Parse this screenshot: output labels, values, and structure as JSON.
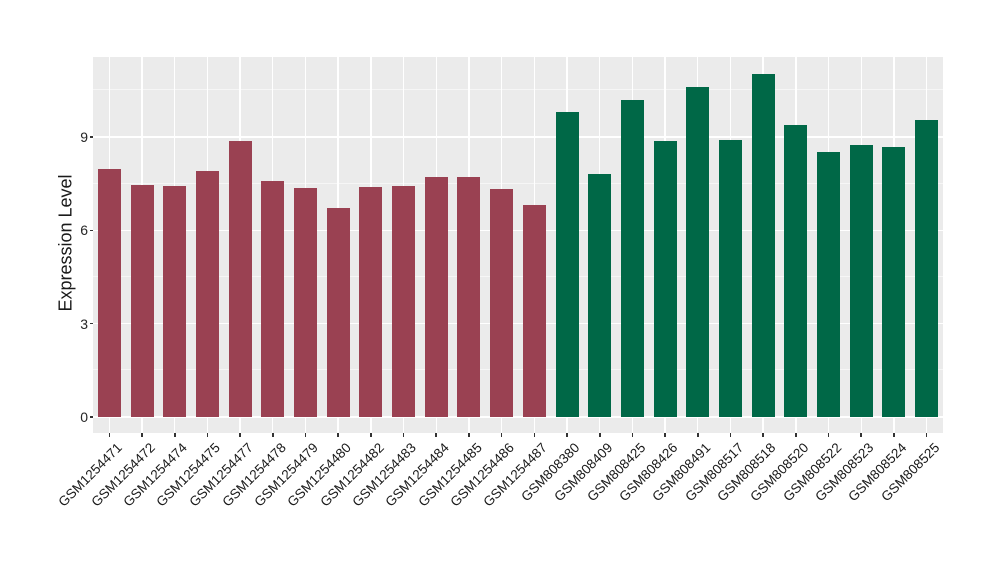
{
  "chart_data": {
    "type": "bar",
    "title": "",
    "ylabel": "Expression Level",
    "xlabel": "",
    "categories": [
      "GSM1254471",
      "GSM1254472",
      "GSM1254474",
      "GSM1254475",
      "GSM1254477",
      "GSM1254478",
      "GSM1254479",
      "GSM1254480",
      "GSM1254482",
      "GSM1254483",
      "GSM1254484",
      "GSM1254485",
      "GSM1254486",
      "GSM1254487",
      "GSM808380",
      "GSM808409",
      "GSM808425",
      "GSM808426",
      "GSM808491",
      "GSM808517",
      "GSM808518",
      "GSM808520",
      "GSM808522",
      "GSM808523",
      "GSM808524",
      "GSM808525"
    ],
    "values": [
      7.98,
      7.47,
      7.42,
      7.9,
      8.87,
      7.6,
      7.36,
      6.72,
      7.4,
      7.42,
      7.7,
      7.7,
      7.32,
      6.81,
      9.8,
      7.8,
      10.19,
      8.87,
      10.61,
      8.9,
      11.02,
      9.4,
      8.52,
      8.75,
      8.67,
      9.55
    ],
    "groups": [
      "group1",
      "group1",
      "group1",
      "group1",
      "group1",
      "group1",
      "group1",
      "group1",
      "group1",
      "group1",
      "group1",
      "group1",
      "group1",
      "group1",
      "group2",
      "group2",
      "group2",
      "group2",
      "group2",
      "group2",
      "group2",
      "group2",
      "group2",
      "group2",
      "group2",
      "group2"
    ],
    "group_colors": {
      "group1": "#9A4152",
      "group2": "#006847"
    },
    "ytick_labels": [
      "0",
      "3",
      "6",
      "9"
    ],
    "yticks": [
      0,
      3,
      6,
      9
    ],
    "yticks_minor": [
      1.5,
      4.5,
      7.5,
      10.5
    ],
    "ylim": [
      0,
      11.57
    ],
    "panel_bg": "#EBEBEB",
    "grid_color": "#FFFFFF",
    "grid": "on",
    "legend": "none"
  }
}
